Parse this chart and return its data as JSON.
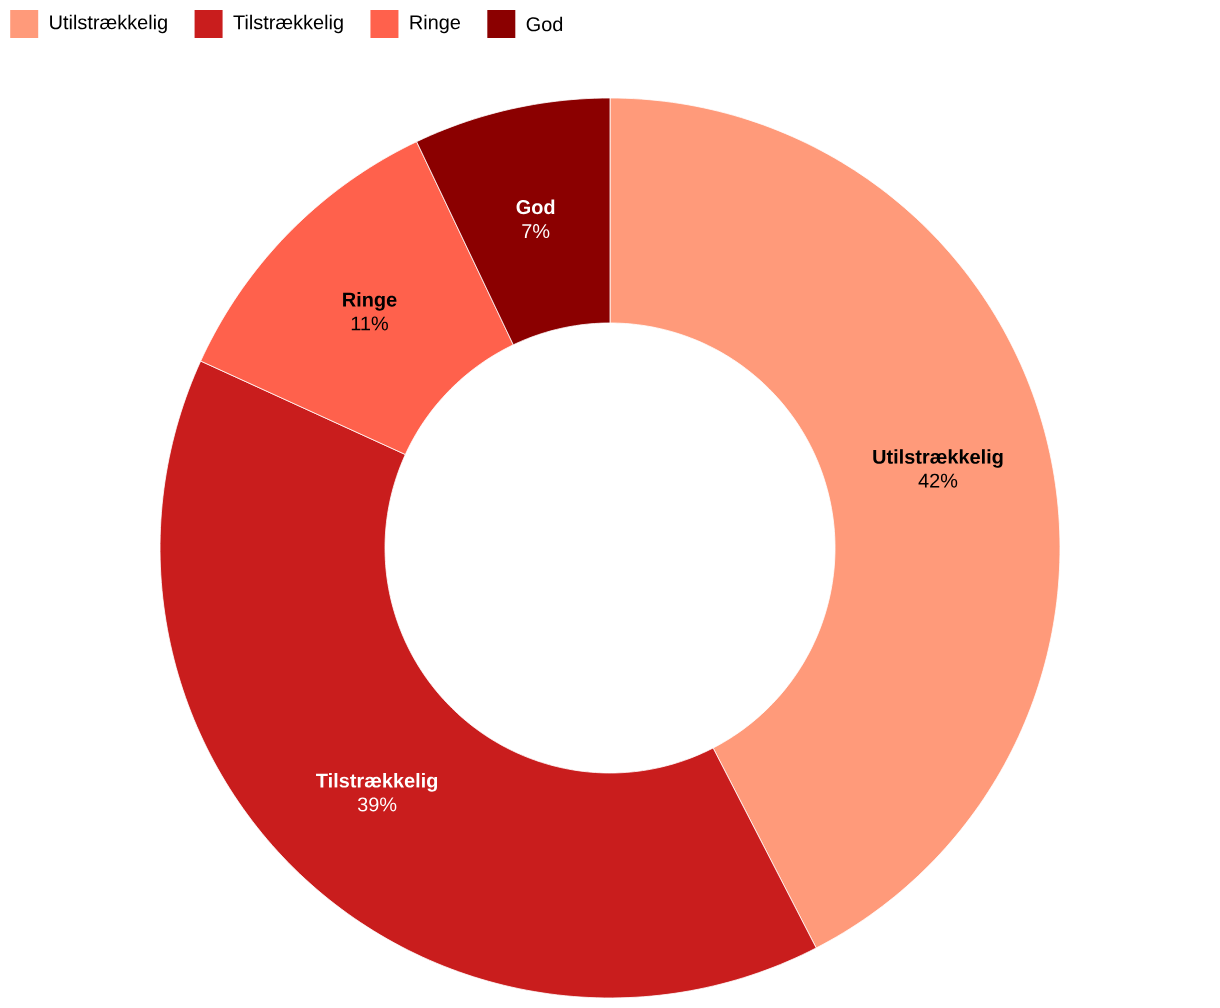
{
  "chart_data": {
    "type": "donut",
    "categories": [
      "Utilstrækkelig",
      "Tilstrækkelig",
      "Ringe",
      "God"
    ],
    "values": [
      42,
      39,
      11,
      7
    ],
    "value_labels": [
      "42%",
      "39%",
      "11%",
      "7%"
    ],
    "colors": [
      "#ff9a7a",
      "#c91d1d",
      "#ff614c",
      "#8b0000"
    ],
    "legend": "top left"
  }
}
